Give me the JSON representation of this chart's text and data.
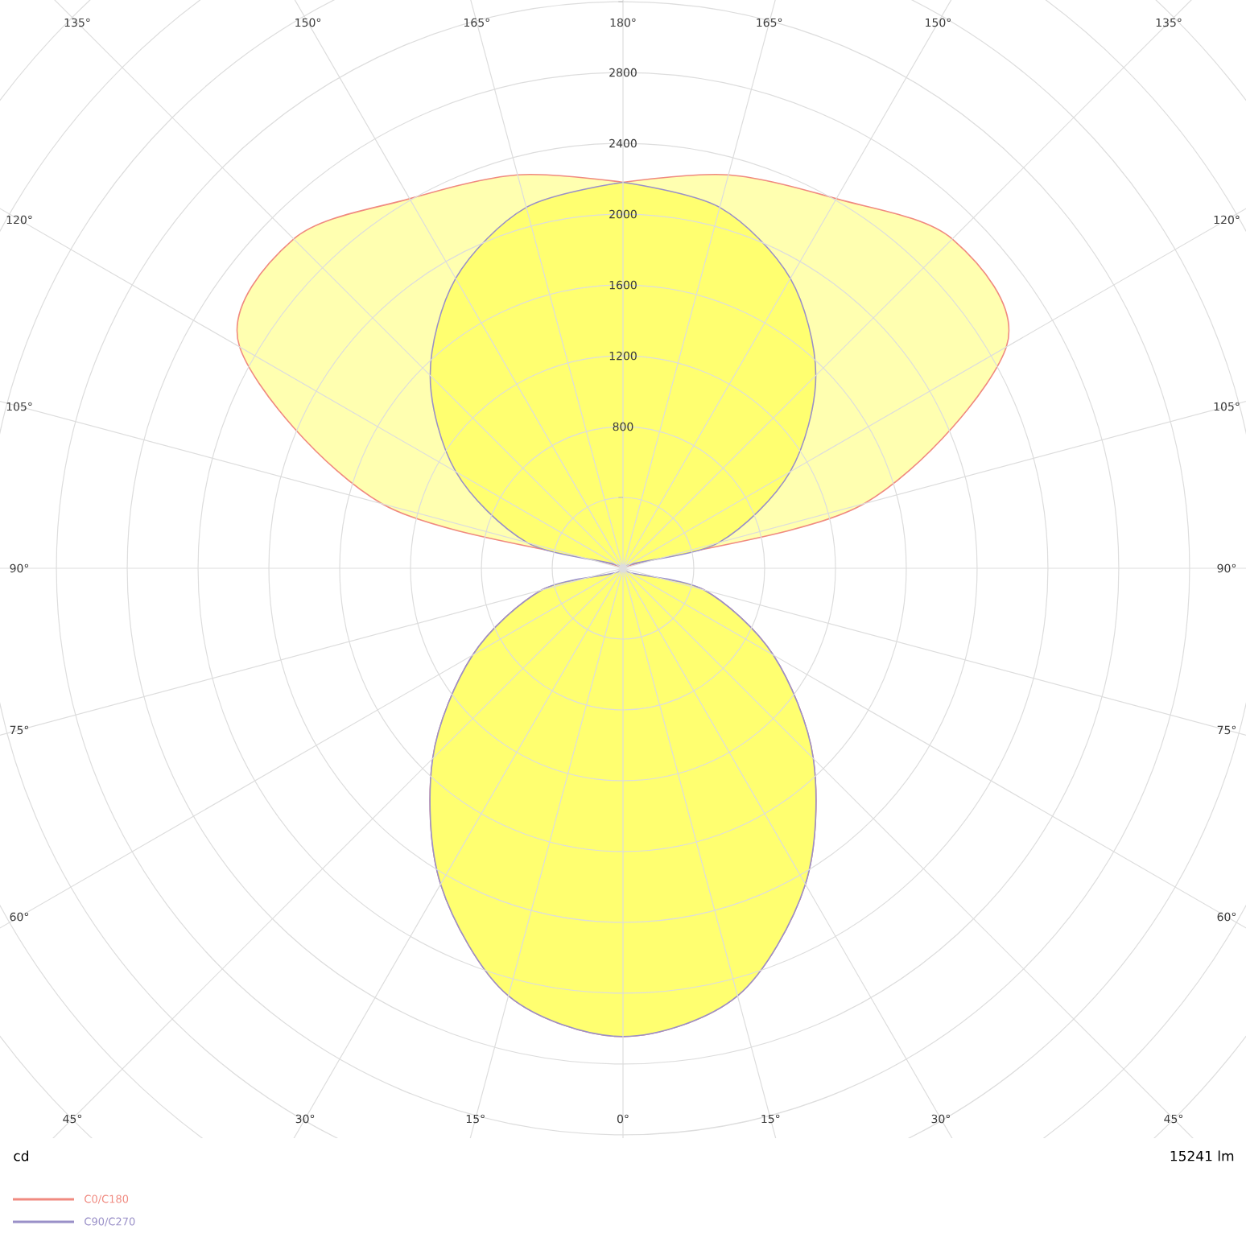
{
  "chart_data": {
    "type": "radar",
    "categories": [
      "180°",
      "165°",
      "150°",
      "135°",
      "120°",
      "105°",
      "90°",
      "75°",
      "60°",
      "45°",
      "30°",
      "15°",
      "0°",
      "15°",
      "30°",
      "45°",
      "60°",
      "75°",
      "90°",
      "105°",
      "120°",
      "135°",
      "150°",
      "165°"
    ],
    "series": [
      {
        "name": "C0/C180",
        "color": "#f08a80",
        "values": [
          2180,
          2300,
          2410,
          2630,
          2500,
          1410,
          0,
          475,
          980,
          1520,
          2060,
          2500,
          2645,
          2500,
          2060,
          1520,
          980,
          475,
          0,
          1410,
          2500,
          2630,
          2410,
          2300
        ]
      },
      {
        "name": "C90/C270",
        "color": "#9a90c8",
        "values": [
          2180,
          2110,
          1890,
          1540,
          1090,
          560,
          0,
          475,
          980,
          1520,
          2060,
          2500,
          2645,
          2500,
          2060,
          1520,
          980,
          475,
          0,
          560,
          1090,
          1540,
          1890,
          2110
        ]
      }
    ],
    "ylim": [
      0,
      4800
    ],
    "yticks": [
      800,
      1200,
      1600,
      2000,
      2400,
      2800
    ],
    "grid": true,
    "legend": "bottom left",
    "ylabel": "cd",
    "annotations": [
      "15241 lm"
    ]
  }
}
